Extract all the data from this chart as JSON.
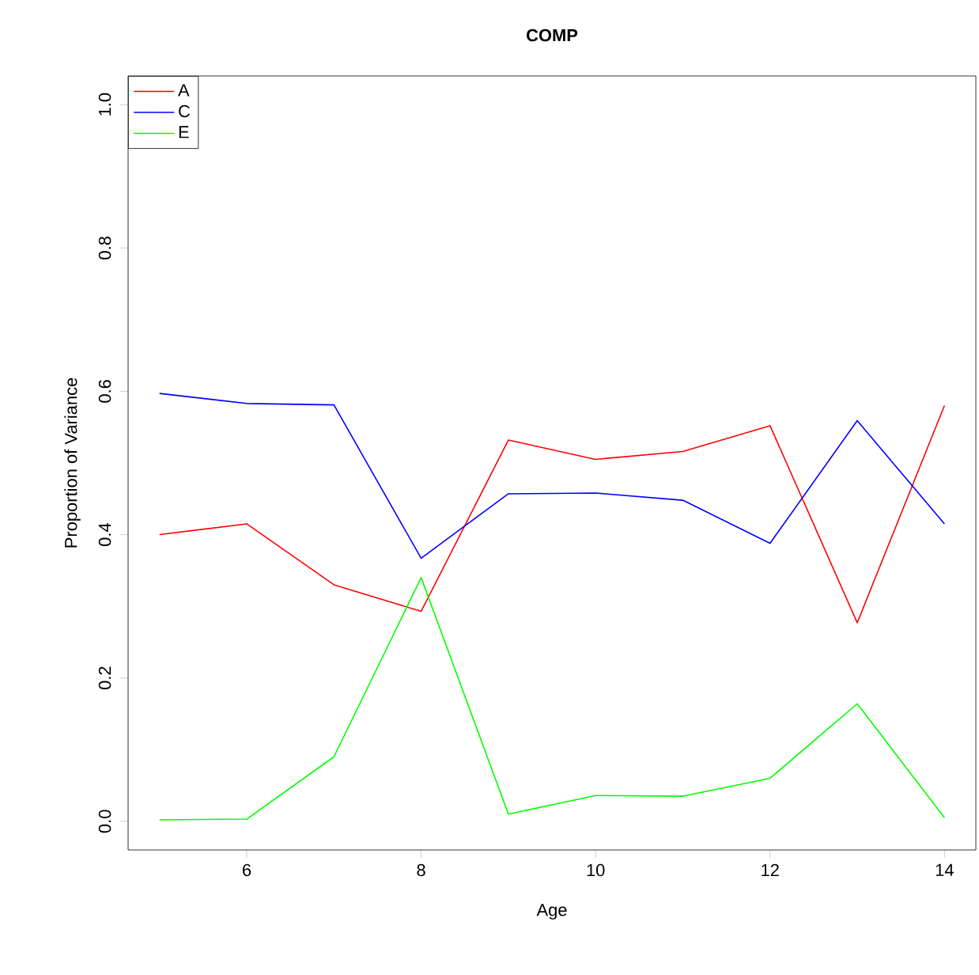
{
  "chart_data": {
    "type": "line",
    "title": "COMP",
    "xlabel": "Age",
    "ylabel": "Proportion of Variance",
    "x": [
      5,
      6,
      7,
      8,
      9,
      10,
      11,
      12,
      13,
      14
    ],
    "series": [
      {
        "name": "A",
        "color": "#ff0000",
        "values": [
          0.4,
          0.415,
          0.33,
          0.293,
          0.532,
          0.505,
          0.516,
          0.552,
          0.277,
          0.58
        ]
      },
      {
        "name": "C",
        "color": "#0000ff",
        "values": [
          0.597,
          0.583,
          0.581,
          0.367,
          0.457,
          0.458,
          0.448,
          0.388,
          0.559,
          0.415
        ]
      },
      {
        "name": "E",
        "color": "#00ff00",
        "values": [
          0.002,
          0.003,
          0.09,
          0.34,
          0.01,
          0.036,
          0.035,
          0.06,
          0.164,
          0.005
        ]
      }
    ],
    "xlim": [
      4.64,
      14.36
    ],
    "ylim": [
      -0.04,
      1.04
    ],
    "xticks": [
      6,
      8,
      10,
      12,
      14
    ],
    "yticks": [
      {
        "value": 0,
        "label": "0.0"
      },
      {
        "value": 0.2,
        "label": "0.2"
      },
      {
        "value": 0.4,
        "label": "0.4"
      },
      {
        "value": 0.6,
        "label": "0.6"
      },
      {
        "value": 0.8,
        "label": "0.8"
      },
      {
        "value": 1,
        "label": "1.0"
      }
    ],
    "legend": "top left",
    "line_style": "solid",
    "marker": "none"
  }
}
